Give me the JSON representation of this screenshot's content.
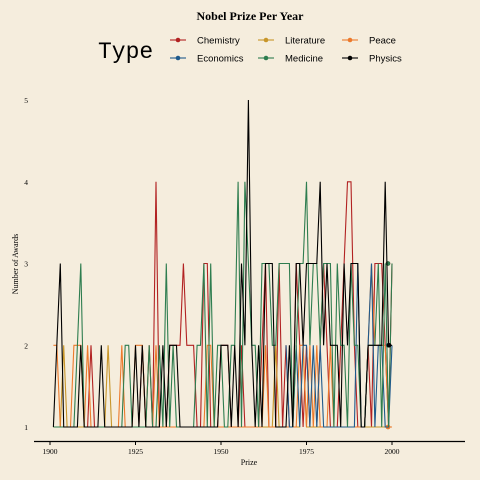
{
  "colors": {
    "background": "#f5eddd",
    "axis": "#000000",
    "Chemistry": "#b22222",
    "Economics": "#1f5a8c",
    "Literature": "#c8962a",
    "Medicine": "#2e7d4f",
    "Peace": "#ec7a2c",
    "Physics": "#000000"
  },
  "chart_data": {
    "type": "line",
    "title": "Nobel Prize Per Year",
    "xlabel": "Prize",
    "ylabel": "Number of Awards",
    "legend_title": "Type",
    "legend_position": "top",
    "grid": false,
    "xlim": [
      1895,
      2022
    ],
    "ylim": [
      0.85,
      5.1
    ],
    "x_ticks": [
      1900,
      1925,
      1950,
      1975,
      2000
    ],
    "y_ticks": [
      1,
      2,
      3,
      4,
      5
    ],
    "legend_order": [
      "Chemistry",
      "Literature",
      "Peace",
      "Economics",
      "Medicine",
      "Physics"
    ],
    "series": [
      {
        "name": "Chemistry",
        "x": [
          1901,
          1902,
          1903,
          1904,
          1905,
          1906,
          1907,
          1908,
          1909,
          1910,
          1911,
          1912,
          1913,
          1914,
          1915,
          1916,
          1917,
          1918,
          1919,
          1920,
          1921,
          1922,
          1923,
          1924,
          1925,
          1926,
          1927,
          1928,
          1929,
          1930,
          1931,
          1932,
          1933,
          1934,
          1935,
          1936,
          1937,
          1938,
          1939,
          1940,
          1941,
          1942,
          1943,
          1944,
          1945,
          1946,
          1947,
          1948,
          1949,
          1950,
          1951,
          1952,
          1953,
          1954,
          1955,
          1956,
          1957,
          1958,
          1959,
          1960,
          1961,
          1962,
          1963,
          1964,
          1965,
          1966,
          1967,
          1968,
          1969,
          1970,
          1971,
          1972,
          1973,
          1974,
          1975,
          1976,
          1977,
          1978,
          1979,
          1980,
          1981,
          1982,
          1983,
          1984,
          1985,
          1986,
          1987,
          1988,
          1989,
          1990,
          1991,
          1992,
          1993,
          1994,
          1995,
          1996,
          1997,
          1998,
          1999,
          2000
        ],
        "values": [
          1,
          1,
          1,
          1,
          1,
          1,
          1,
          1,
          1,
          1,
          1,
          2,
          1,
          1,
          1,
          1,
          1,
          1,
          1,
          1,
          1,
          1,
          1,
          1,
          1,
          1,
          2,
          1,
          2,
          1,
          4,
          1,
          1,
          1,
          2,
          2,
          2,
          2,
          3,
          2,
          2,
          2,
          1,
          1,
          3,
          3,
          1,
          1,
          1,
          2,
          2,
          2,
          1,
          1,
          1,
          2,
          1,
          1,
          1,
          1,
          1,
          2,
          3,
          1,
          1,
          1,
          3,
          1,
          2,
          1,
          1,
          3,
          2,
          1,
          2,
          1,
          1,
          1,
          2,
          3,
          2,
          1,
          1,
          1,
          2,
          3,
          4,
          4,
          2,
          1,
          1,
          1,
          2,
          1,
          3,
          3,
          3,
          2,
          1,
          3
        ]
      },
      {
        "name": "Economics",
        "x": [
          1969,
          1970,
          1971,
          1972,
          1973,
          1974,
          1975,
          1976,
          1977,
          1978,
          1979,
          1980,
          1981,
          1982,
          1983,
          1984,
          1985,
          1986,
          1987,
          1988,
          1989,
          1990,
          1991,
          1992,
          1993,
          1994,
          1995,
          1996,
          1997,
          1998,
          1999,
          2000
        ],
        "values": [
          2,
          1,
          1,
          2,
          1,
          2,
          2,
          1,
          2,
          1,
          2,
          1,
          1,
          1,
          1,
          1,
          1,
          1,
          1,
          1,
          1,
          3,
          1,
          1,
          2,
          3,
          1,
          2,
          2,
          1,
          1,
          2
        ]
      },
      {
        "name": "Literature",
        "x": [
          1901,
          1902,
          1903,
          1904,
          1905,
          1906,
          1907,
          1908,
          1909,
          1910,
          1911,
          1912,
          1913,
          1914,
          1915,
          1916,
          1917,
          1918,
          1919,
          1920,
          1921,
          1922,
          1923,
          1924,
          1925,
          1926,
          1927,
          1928,
          1929,
          1930,
          1931,
          1932,
          1933,
          1934,
          1935,
          1936,
          1937,
          1938,
          1939,
          1940,
          1941,
          1942,
          1943,
          1944,
          1945,
          1946,
          1947,
          1948,
          1949,
          1950,
          1951,
          1952,
          1953,
          1954,
          1955,
          1956,
          1957,
          1958,
          1959,
          1960,
          1961,
          1962,
          1963,
          1964,
          1965,
          1966,
          1967,
          1968,
          1969,
          1970,
          1971,
          1972,
          1973,
          1974,
          1975,
          1976,
          1977,
          1978,
          1979,
          1980,
          1981,
          1982,
          1983,
          1984,
          1985,
          1986,
          1987,
          1988,
          1989,
          1990,
          1991,
          1992,
          1993,
          1994,
          1995,
          1996,
          1997,
          1998,
          1999,
          2000
        ],
        "values": [
          1,
          1,
          1,
          2,
          1,
          1,
          1,
          1,
          1,
          1,
          1,
          1,
          1,
          1,
          1,
          1,
          2,
          1,
          1,
          1,
          1,
          1,
          1,
          1,
          1,
          1,
          1,
          1,
          1,
          1,
          1,
          1,
          1,
          1,
          1,
          1,
          1,
          1,
          1,
          1,
          1,
          1,
          1,
          1,
          1,
          1,
          1,
          1,
          1,
          1,
          1,
          1,
          1,
          1,
          1,
          1,
          1,
          1,
          1,
          1,
          1,
          1,
          1,
          1,
          1,
          2,
          1,
          1,
          1,
          1,
          1,
          1,
          1,
          2,
          1,
          1,
          1,
          1,
          1,
          1,
          1,
          1,
          1,
          1,
          1,
          1,
          1,
          1,
          1,
          1,
          1,
          1,
          1,
          1,
          1,
          1,
          1,
          1,
          1,
          1
        ]
      },
      {
        "name": "Medicine",
        "x": [
          1901,
          1902,
          1903,
          1904,
          1905,
          1906,
          1907,
          1908,
          1909,
          1910,
          1911,
          1912,
          1913,
          1914,
          1915,
          1916,
          1917,
          1918,
          1919,
          1920,
          1921,
          1922,
          1923,
          1924,
          1925,
          1926,
          1927,
          1928,
          1929,
          1930,
          1931,
          1932,
          1933,
          1934,
          1935,
          1936,
          1937,
          1938,
          1939,
          1940,
          1941,
          1942,
          1943,
          1944,
          1945,
          1946,
          1947,
          1948,
          1949,
          1950,
          1951,
          1952,
          1953,
          1954,
          1955,
          1956,
          1957,
          1958,
          1959,
          1960,
          1961,
          1962,
          1963,
          1964,
          1965,
          1966,
          1967,
          1968,
          1969,
          1970,
          1971,
          1972,
          1973,
          1974,
          1975,
          1976,
          1977,
          1978,
          1979,
          1980,
          1981,
          1982,
          1983,
          1984,
          1985,
          1986,
          1987,
          1988,
          1989,
          1990,
          1991,
          1992,
          1993,
          1994,
          1995,
          1996,
          1997,
          1998,
          1999,
          2000
        ],
        "values": [
          1,
          1,
          1,
          1,
          1,
          1,
          1,
          2,
          3,
          1,
          1,
          1,
          1,
          1,
          1,
          1,
          1,
          1,
          1,
          1,
          1,
          2,
          2,
          1,
          1,
          1,
          1,
          1,
          2,
          1,
          1,
          2,
          1,
          3,
          1,
          2,
          1,
          1,
          1,
          1,
          1,
          1,
          2,
          2,
          3,
          1,
          3,
          1,
          2,
          2,
          1,
          1,
          2,
          2,
          4,
          1,
          4,
          3,
          2,
          2,
          1,
          3,
          3,
          3,
          2,
          2,
          3,
          3,
          3,
          3,
          1,
          2,
          3,
          3,
          4,
          2,
          3,
          3,
          2,
          3,
          3,
          3,
          1,
          3,
          2,
          2,
          1,
          3,
          2,
          2,
          1,
          1,
          2,
          2,
          2,
          3,
          1,
          3,
          1,
          3
        ]
      },
      {
        "name": "Peace",
        "x": [
          1901,
          1902,
          1903,
          1904,
          1905,
          1906,
          1907,
          1908,
          1909,
          1910,
          1911,
          1912,
          1913,
          1914,
          1915,
          1916,
          1917,
          1918,
          1919,
          1920,
          1921,
          1922,
          1923,
          1924,
          1925,
          1926,
          1927,
          1928,
          1929,
          1930,
          1931,
          1932,
          1933,
          1934,
          1935,
          1936,
          1937,
          1938,
          1939,
          1940,
          1941,
          1942,
          1943,
          1944,
          1945,
          1946,
          1947,
          1948,
          1949,
          1950,
          1951,
          1952,
          1953,
          1954,
          1955,
          1956,
          1957,
          1958,
          1959,
          1960,
          1961,
          1962,
          1963,
          1964,
          1965,
          1966,
          1967,
          1968,
          1969,
          1970,
          1971,
          1972,
          1973,
          1974,
          1975,
          1976,
          1977,
          1978,
          1979,
          1980,
          1981,
          1982,
          1983,
          1984,
          1985,
          1986,
          1987,
          1988,
          1989,
          1990,
          1991,
          1992,
          1993,
          1994,
          1995,
          1996,
          1997,
          1998,
          1999,
          2000
        ],
        "values": [
          2,
          2,
          1,
          1,
          1,
          1,
          2,
          2,
          2,
          1,
          2,
          1,
          1,
          1,
          1,
          1,
          1,
          1,
          1,
          1,
          2,
          1,
          1,
          1,
          2,
          2,
          2,
          1,
          1,
          1,
          2,
          1,
          1,
          1,
          1,
          1,
          1,
          1,
          1,
          1,
          1,
          1,
          1,
          1,
          1,
          2,
          2,
          1,
          1,
          1,
          1,
          1,
          1,
          1,
          1,
          1,
          1,
          1,
          1,
          1,
          1,
          1,
          2,
          1,
          1,
          1,
          1,
          1,
          1,
          1,
          1,
          1,
          2,
          2,
          1,
          2,
          1,
          2,
          1,
          1,
          1,
          2,
          1,
          1,
          1,
          1,
          1,
          1,
          1,
          1,
          1,
          1,
          2,
          3,
          2,
          2,
          2,
          2,
          1,
          1
        ]
      },
      {
        "name": "Physics",
        "x": [
          1901,
          1902,
          1903,
          1904,
          1905,
          1906,
          1907,
          1908,
          1909,
          1910,
          1911,
          1912,
          1913,
          1914,
          1915,
          1916,
          1917,
          1918,
          1919,
          1920,
          1921,
          1922,
          1923,
          1924,
          1925,
          1926,
          1927,
          1928,
          1929,
          1930,
          1931,
          1932,
          1933,
          1934,
          1935,
          1936,
          1937,
          1938,
          1939,
          1940,
          1941,
          1942,
          1943,
          1944,
          1945,
          1946,
          1947,
          1948,
          1949,
          1950,
          1951,
          1952,
          1953,
          1954,
          1955,
          1956,
          1957,
          1958,
          1959,
          1960,
          1961,
          1962,
          1963,
          1964,
          1965,
          1966,
          1967,
          1968,
          1969,
          1970,
          1971,
          1972,
          1973,
          1974,
          1975,
          1976,
          1977,
          1978,
          1979,
          1980,
          1981,
          1982,
          1983,
          1984,
          1985,
          1986,
          1987,
          1988,
          1989,
          1990,
          1991,
          1992,
          1993,
          1994,
          1995,
          1996,
          1997,
          1998,
          1999,
          2000
        ],
        "values": [
          1,
          2,
          3,
          1,
          1,
          1,
          1,
          1,
          2,
          1,
          1,
          1,
          1,
          1,
          2,
          1,
          1,
          1,
          1,
          1,
          1,
          1,
          1,
          1,
          2,
          1,
          2,
          1,
          1,
          1,
          1,
          1,
          2,
          1,
          2,
          2,
          2,
          1,
          1,
          1,
          1,
          1,
          1,
          1,
          1,
          1,
          1,
          1,
          1,
          2,
          2,
          2,
          1,
          2,
          1,
          3,
          2,
          5,
          2,
          1,
          2,
          1,
          3,
          3,
          3,
          1,
          1,
          1,
          1,
          2,
          1,
          3,
          3,
          2,
          3,
          3,
          3,
          3,
          4,
          2,
          3,
          2,
          2,
          2,
          1,
          3,
          2,
          3,
          3,
          3,
          1,
          1,
          2,
          2,
          2,
          2,
          2,
          4,
          2,
          2
        ]
      }
    ]
  }
}
